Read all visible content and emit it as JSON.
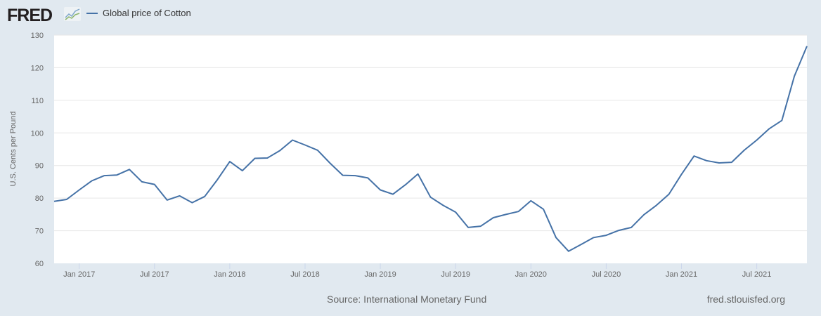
{
  "header": {
    "logo": "FRED",
    "logo_icon": "fred-chart-icon"
  },
  "source": "Source: International Monetary Fund",
  "url": "fred.stlouisfed.org",
  "chart_data": {
    "type": "line",
    "title": "",
    "ylabel": "U.S. Cents per Pound",
    "xlabel": "",
    "ylim": [
      60,
      130
    ],
    "yticks": [
      60,
      70,
      80,
      90,
      100,
      110,
      120,
      130
    ],
    "xticks": [
      "Jan 2017",
      "Jul 2017",
      "Jan 2018",
      "Jul 2018",
      "Jan 2019",
      "Jul 2019",
      "Jan 2020",
      "Jul 2020",
      "Jan 2021",
      "Jul 2021"
    ],
    "xtick_dates": [
      "2017-01",
      "2017-07",
      "2018-01",
      "2018-07",
      "2019-01",
      "2019-07",
      "2020-01",
      "2020-07",
      "2021-01",
      "2021-07"
    ],
    "xlim": [
      "2016-11",
      "2021-11"
    ],
    "grid": true,
    "legend_placement": "top-left",
    "color": "#4572a7",
    "series": [
      {
        "name": "Global price of Cotton",
        "start": "2016-11",
        "frequency": "monthly",
        "values": [
          79.0,
          79.6,
          82.5,
          85.3,
          86.9,
          87.1,
          88.8,
          85.0,
          84.2,
          79.4,
          80.7,
          78.6,
          80.5,
          85.6,
          91.2,
          88.4,
          92.2,
          92.3,
          94.6,
          97.8,
          96.3,
          94.7,
          90.7,
          87.0,
          86.9,
          86.2,
          82.5,
          81.2,
          84.1,
          87.4,
          80.3,
          77.8,
          75.7,
          71.0,
          71.4,
          74.0,
          75.0,
          75.9,
          79.2,
          76.6,
          67.9,
          63.7,
          65.8,
          67.9,
          68.6,
          70.1,
          71.0,
          74.9,
          77.8,
          81.2,
          87.3,
          92.9,
          91.5,
          90.8,
          91.0,
          94.7,
          97.8,
          101.3,
          103.8,
          117.4,
          126.6
        ]
      }
    ]
  }
}
